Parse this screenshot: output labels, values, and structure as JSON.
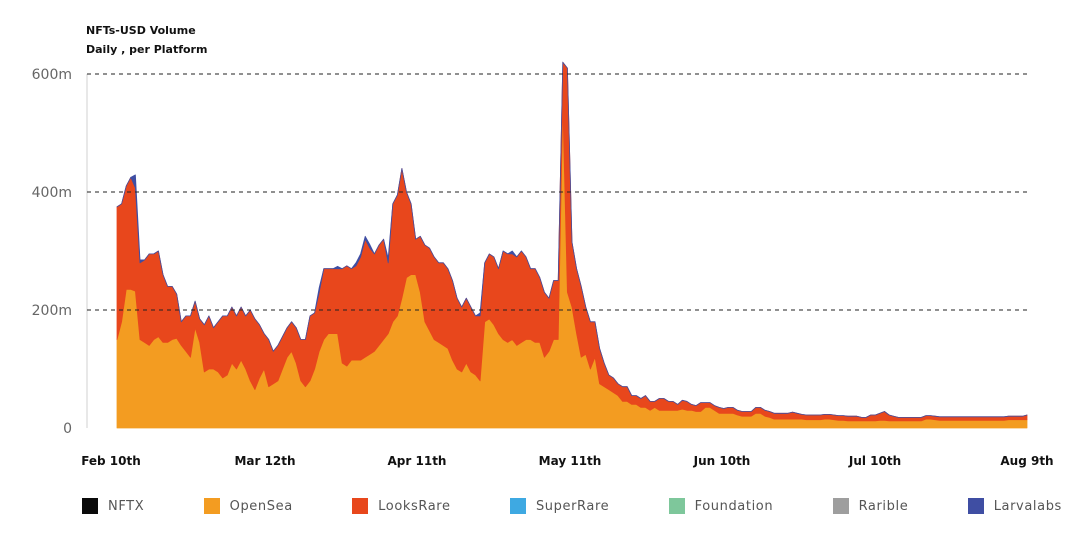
{
  "header": {
    "title": "NFTs-USD Volume",
    "subtitle": "Daily , per Platform"
  },
  "colors": {
    "NFTX": "#0a0a0a",
    "OpenSea": "#f39c21",
    "LooksRare": "#e8471c",
    "SuperRare": "#3ea9e2",
    "Foundation": "#7ec79b",
    "Rarible": "#9e9e9e",
    "Larvalabs": "#3f4ea3"
  },
  "legend": [
    {
      "label": "NFTX",
      "color": "#0a0a0a"
    },
    {
      "label": "OpenSea",
      "color": "#f39c21"
    },
    {
      "label": "LooksRare",
      "color": "#e8471c"
    },
    {
      "label": "SuperRare",
      "color": "#3ea9e2"
    },
    {
      "label": "Foundation",
      "color": "#7ec79b"
    },
    {
      "label": "Rarible",
      "color": "#9e9e9e"
    },
    {
      "label": "Larvalabs",
      "color": "#3f4ea3"
    }
  ],
  "chart_data": {
    "type": "area",
    "stacked": true,
    "title": "NFTs-USD Volume",
    "subtitle": "Daily , per Platform",
    "x_ticks": [
      "Feb 10th",
      "Mar 12th",
      "Apr 11th",
      "May 11th",
      "Jun 10th",
      "Jul 10th",
      "Aug 9th"
    ],
    "y_ticks": [
      "0",
      "200m",
      "400m",
      "600m"
    ],
    "ylim": [
      0,
      600
    ],
    "y_unit": "millions USD",
    "grid": "dashed horizontal at 200m, 400m, 600m",
    "legend_position": "bottom",
    "x_start": "2022-02-10",
    "series": [
      {
        "name": "OpenSea",
        "values": [
          150,
          180,
          235,
          235,
          232,
          150,
          145,
          140,
          150,
          155,
          145,
          145,
          150,
          152,
          140,
          130,
          120,
          170,
          145,
          95,
          100,
          100,
          95,
          85,
          90,
          110,
          100,
          115,
          100,
          80,
          65,
          85,
          100,
          70,
          75,
          80,
          100,
          120,
          130,
          110,
          80,
          70,
          80,
          100,
          130,
          150,
          160,
          160,
          160,
          110,
          105,
          115,
          115,
          115,
          120,
          125,
          130,
          140,
          150,
          160,
          180,
          190,
          220,
          255,
          260,
          260,
          230,
          180,
          165,
          150,
          145,
          140,
          135,
          115,
          100,
          95,
          110,
          95,
          90,
          80,
          180,
          185,
          175,
          160,
          150,
          145,
          150,
          140,
          145,
          150,
          150,
          145,
          145,
          120,
          130,
          150,
          150,
          550,
          230,
          205,
          160,
          120,
          125,
          100,
          120,
          75,
          70,
          65,
          60,
          55,
          45,
          45,
          40,
          40,
          35,
          35,
          30,
          35,
          30,
          30,
          30,
          30,
          30,
          32,
          30,
          30,
          28,
          28,
          35,
          35,
          30,
          25,
          25,
          25,
          25,
          22,
          20,
          20,
          20,
          25,
          25,
          20,
          18,
          15,
          15,
          15,
          15,
          15,
          15,
          15,
          14,
          14,
          14,
          14,
          15,
          15,
          14,
          13,
          13,
          12,
          12,
          12,
          12,
          12,
          12,
          12,
          13,
          13,
          12,
          12,
          12,
          12,
          12,
          12,
          12,
          12,
          15,
          15,
          14,
          13,
          13,
          13,
          13,
          13,
          13,
          13,
          13,
          13,
          13,
          13,
          13,
          13,
          13,
          13,
          14,
          14,
          14,
          14,
          14
        ]
      },
      {
        "name": "LooksRare",
        "values": [
          225,
          200,
          175,
          190,
          175,
          130,
          140,
          155,
          145,
          145,
          115,
          95,
          90,
          75,
          40,
          60,
          70,
          45,
          40,
          80,
          90,
          70,
          85,
          105,
          100,
          95,
          90,
          90,
          90,
          120,
          120,
          90,
          60,
          80,
          55,
          60,
          55,
          50,
          50,
          60,
          70,
          80,
          110,
          95,
          100,
          120,
          110,
          110,
          110,
          160,
          170,
          155,
          160,
          175,
          200,
          180,
          165,
          170,
          170,
          120,
          200,
          205,
          220,
          145,
          120,
          60,
          95,
          130,
          140,
          140,
          135,
          140,
          135,
          135,
          120,
          110,
          110,
          110,
          100,
          110,
          100,
          110,
          115,
          110,
          150,
          150,
          145,
          150,
          155,
          140,
          120,
          125,
          110,
          110,
          90,
          100,
          100,
          70,
          380,
          110,
          110,
          120,
          80,
          80,
          60,
          60,
          40,
          25,
          25,
          20,
          25,
          25,
          15,
          15,
          15,
          20,
          15,
          10,
          20,
          20,
          15,
          15,
          10,
          15,
          15,
          10,
          10,
          15,
          8,
          8,
          8,
          10,
          8,
          10,
          10,
          8,
          8,
          8,
          8,
          10,
          10,
          10,
          10,
          10,
          10,
          10,
          10,
          12,
          10,
          8,
          8,
          8,
          8,
          8,
          8,
          8,
          8,
          8,
          8,
          8,
          8,
          8,
          6,
          6,
          10,
          10,
          12,
          15,
          10,
          8,
          6,
          6,
          6,
          6,
          6,
          6,
          6,
          6,
          6,
          6,
          6,
          6,
          6,
          6,
          6,
          6,
          6,
          6,
          6,
          6,
          6,
          6,
          6,
          6,
          6,
          6,
          6,
          6,
          8
        ]
      },
      {
        "name": "Larvalabs",
        "values": [
          0,
          0,
          0,
          0,
          22,
          5,
          0,
          0,
          0,
          0,
          0,
          0,
          0,
          0,
          0,
          0,
          0,
          0,
          0,
          0,
          0,
          0,
          0,
          0,
          0,
          0,
          0,
          0,
          0,
          0,
          0,
          0,
          0,
          0,
          0,
          0,
          0,
          0,
          0,
          0,
          0,
          0,
          0,
          0,
          8,
          0,
          0,
          0,
          4,
          0,
          0,
          0,
          5,
          5,
          5,
          6,
          0,
          0,
          0,
          8,
          0,
          0,
          0,
          0,
          0,
          0,
          0,
          0,
          0,
          0,
          0,
          0,
          0,
          0,
          0,
          0,
          0,
          0,
          0,
          5,
          0,
          0,
          0,
          0,
          0,
          0,
          5,
          0,
          0,
          0,
          0,
          0,
          0,
          0,
          0,
          0,
          0,
          0,
          0,
          0,
          0,
          0,
          0,
          0,
          0,
          0,
          0,
          0,
          0,
          0,
          0,
          0,
          0,
          0,
          0,
          0,
          0,
          0,
          0,
          0,
          0,
          0,
          0,
          0,
          0,
          0,
          0,
          0,
          0,
          0,
          0,
          0,
          0,
          0,
          0,
          0,
          0,
          0,
          0,
          0,
          0,
          0,
          0,
          0,
          0,
          0,
          0,
          0,
          0,
          0,
          0,
          0,
          0,
          0,
          0,
          0,
          0,
          0,
          0,
          0,
          0,
          0,
          0,
          0,
          0,
          0,
          0,
          0,
          0,
          0,
          0,
          0,
          0,
          0,
          0,
          0,
          0,
          0,
          0,
          0,
          0,
          0,
          0,
          0,
          0,
          0,
          0,
          0,
          0,
          0,
          0,
          0,
          0,
          0,
          0,
          0,
          0,
          0,
          0,
          0,
          0
        ]
      }
    ]
  }
}
